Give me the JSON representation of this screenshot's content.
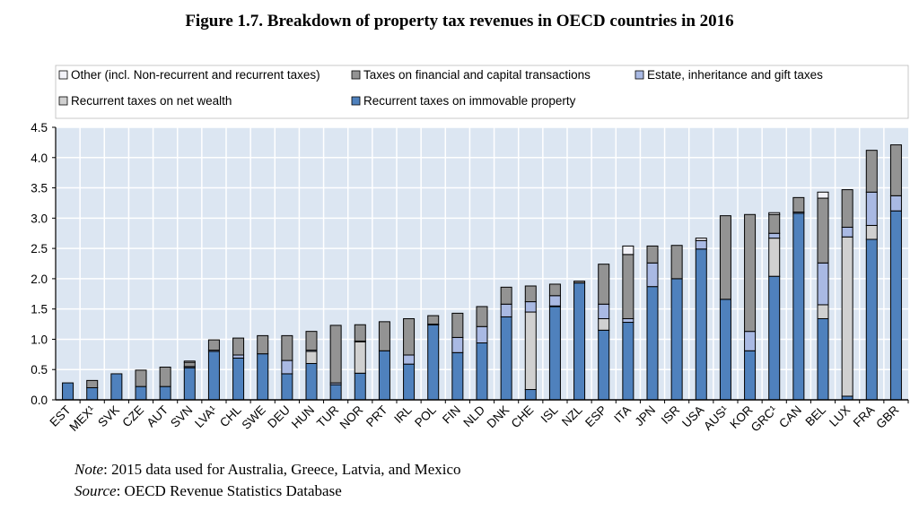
{
  "chart_data": {
    "type": "bar",
    "stacked": true,
    "title": "Figure 1.7. Breakdown of property tax revenues in OECD countries in 2016",
    "xlabel": "",
    "ylabel": "",
    "ylim": [
      0,
      4.5
    ],
    "yticks": [
      "0.0",
      "0.5",
      "1.0",
      "1.5",
      "2.0",
      "2.5",
      "3.0",
      "3.5",
      "4.0",
      "4.5"
    ],
    "grid": true,
    "legend_placement": "top",
    "categories": [
      "EST",
      "MEX¹",
      "SVK",
      "CZE",
      "AUT",
      "SVN",
      "LVA¹",
      "CHL",
      "SWE",
      "DEU",
      "HUN",
      "TUR",
      "NOR",
      "PRT",
      "IRL",
      "POL",
      "FIN",
      "NLD",
      "DNK",
      "CHE",
      "ISL",
      "NZL",
      "ESP",
      "ITA",
      "JPN",
      "ISR",
      "USA",
      "AUS¹",
      "KOR",
      "GRC¹",
      "CAN",
      "BEL",
      "LUX",
      "FRA",
      "GBR"
    ],
    "series": [
      {
        "name": "Recurrent taxes on immovable property",
        "color": "#4f81bd",
        "values": [
          0.28,
          0.2,
          0.43,
          0.22,
          0.22,
          0.53,
          0.8,
          0.69,
          0.76,
          0.43,
          0.6,
          0.25,
          0.44,
          0.81,
          0.59,
          1.24,
          0.78,
          0.94,
          1.37,
          0.17,
          1.54,
          1.93,
          1.15,
          1.28,
          1.87,
          2.0,
          2.49,
          1.66,
          0.81,
          2.04,
          3.08,
          1.34,
          0.06,
          2.65,
          3.12
        ]
      },
      {
        "name": "Recurrent taxes on net wealth",
        "color": "#d0d0d0",
        "values": [
          0,
          0,
          0,
          0,
          0,
          0,
          0,
          0,
          0,
          0,
          0.2,
          0,
          0.52,
          0,
          0,
          0,
          0,
          0,
          0,
          1.28,
          0.01,
          0,
          0.19,
          0,
          0,
          0,
          0,
          0,
          0,
          0.63,
          0,
          0.23,
          2.63,
          0.23,
          0
        ]
      },
      {
        "name": "Estate, inheritance and gift taxes",
        "color": "#a9b9e3",
        "values": [
          0,
          0,
          0,
          0,
          0,
          0.02,
          0.02,
          0.05,
          0,
          0.22,
          0.02,
          0.03,
          0.01,
          0,
          0.15,
          0.01,
          0.25,
          0.27,
          0.21,
          0.17,
          0.17,
          0,
          0.24,
          0.06,
          0.39,
          0,
          0.14,
          0,
          0.32,
          0.08,
          0.02,
          0.69,
          0.16,
          0.55,
          0.25
        ]
      },
      {
        "name": "Taxes on financial and capital transactions",
        "color": "#939393",
        "values": [
          0,
          0.12,
          0,
          0.27,
          0.32,
          0.07,
          0.17,
          0.28,
          0.3,
          0.41,
          0.31,
          0.95,
          0.27,
          0.48,
          0.6,
          0.14,
          0.4,
          0.33,
          0.28,
          0.26,
          0.19,
          0.03,
          0.66,
          1.06,
          0.28,
          0.55,
          0,
          1.38,
          1.93,
          0.31,
          0.24,
          1.07,
          0.62,
          0.69,
          0.84
        ]
      },
      {
        "name": "Other (incl. Non-recurrent and recurrent taxes)",
        "color": "#f2f2f8",
        "values": [
          0,
          0,
          0,
          0,
          0,
          0.02,
          0,
          0,
          0,
          0,
          0,
          0,
          0,
          0,
          0,
          0,
          0,
          0,
          0,
          0,
          0,
          0,
          0,
          0.14,
          0,
          0,
          0.04,
          0,
          0,
          0.03,
          0,
          0.1,
          0,
          0,
          0
        ]
      }
    ],
    "legend_order": [
      4,
      3,
      2,
      1,
      0
    ]
  },
  "notes": {
    "note_label": "Note",
    "note_text": ": 2015 data used for Australia, Greece, Latvia, and Mexico",
    "source_label": "Source",
    "source_text": ": OECD Revenue Statistics Database"
  },
  "colors": {
    "plot_bg": "#dce6f2",
    "grid": "#ffffff"
  }
}
